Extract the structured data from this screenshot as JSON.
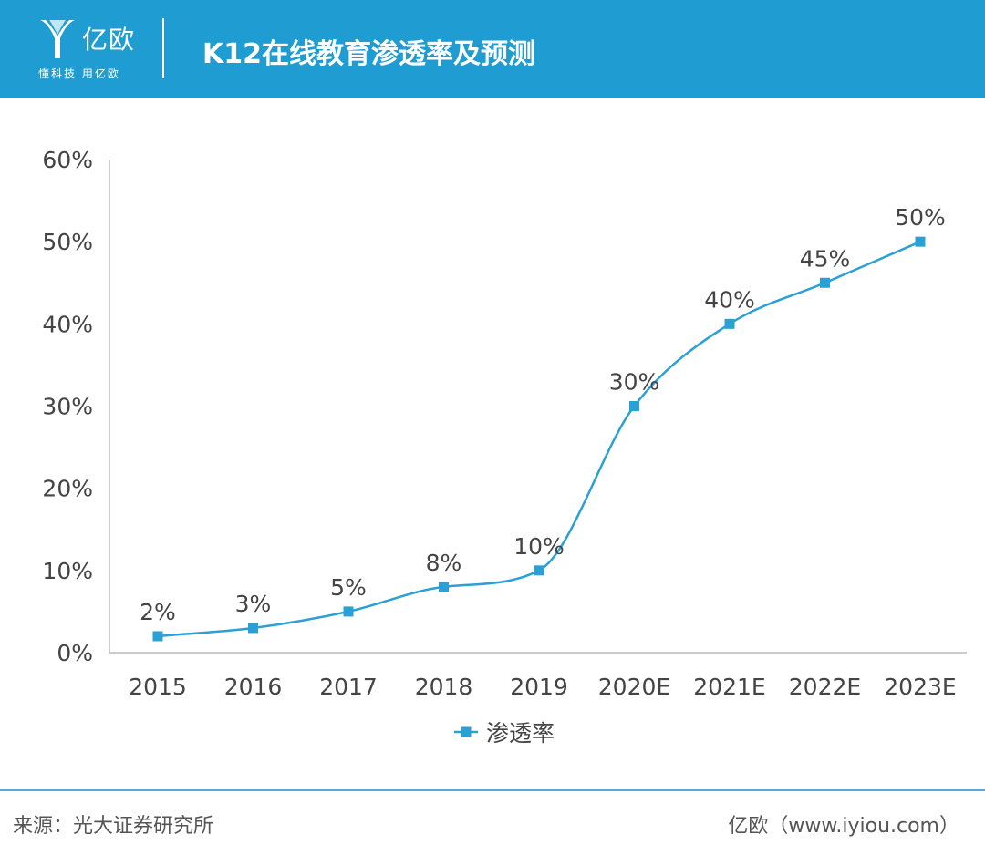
{
  "header": {
    "logo_name": "亿欧",
    "logo_slogan": "懂科技 用亿欧",
    "title": "K12在线教育渗透率及预测",
    "brand_color": "#1f9dd3"
  },
  "chart_data": {
    "type": "line",
    "title": "K12在线教育渗透率及预测",
    "categories": [
      "2015",
      "2016",
      "2017",
      "2018",
      "2019",
      "2020E",
      "2021E",
      "2022E",
      "2023E"
    ],
    "series": [
      {
        "name": "渗透率",
        "values": [
          2,
          3,
          5,
          8,
          10,
          30,
          40,
          45,
          50
        ],
        "data_labels": [
          "2%",
          "3%",
          "5%",
          "8%",
          "10%",
          "30%",
          "40%",
          "45%",
          "50%"
        ],
        "color": "#2aa0d4",
        "marker": "square",
        "smooth": true
      }
    ],
    "y_ticks": [
      "0%",
      "10%",
      "20%",
      "30%",
      "40%",
      "50%",
      "60%"
    ],
    "ylim": [
      0,
      60
    ],
    "grid": false,
    "legend": "bottom-center"
  },
  "footer": {
    "source": "来源：光大证券研究所",
    "credit": "亿欧（www.iyiou.com）"
  }
}
